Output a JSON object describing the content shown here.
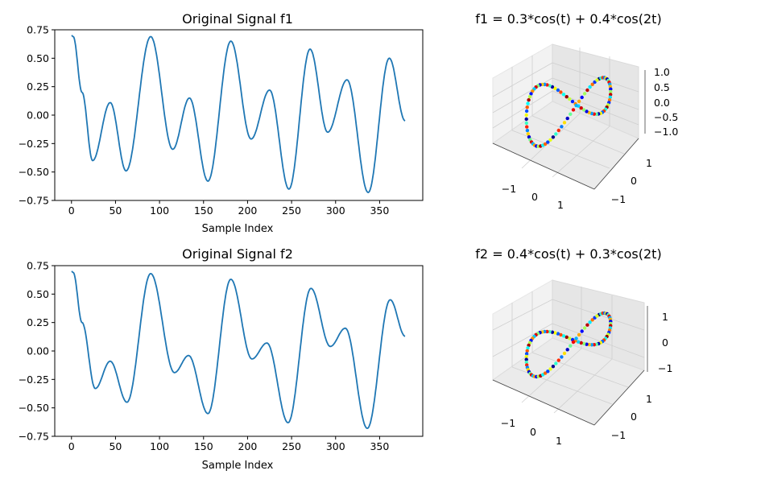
{
  "chart_data": [
    {
      "type": "line",
      "title": "Original Signal f1",
      "xlabel": "Sample Index",
      "ylabel": "",
      "xlim": [
        -19,
        399
      ],
      "ylim": [
        -0.75,
        0.75
      ],
      "xticks": [
        "0",
        "50",
        "100",
        "150",
        "200",
        "250",
        "300",
        "350"
      ],
      "yticks": [
        "0.75",
        "0.50",
        "0.25",
        "0.00",
        "−0.25",
        "−0.50",
        "−0.75"
      ],
      "series": [
        {
          "color": "#1f77b4",
          "x": [
            0,
            2,
            12,
            24,
            44,
            62,
            90,
            115,
            134,
            155,
            181,
            204,
            225,
            247,
            271,
            291,
            313,
            337,
            361,
            379
          ],
          "y": [
            0.7,
            0.69,
            0.2,
            -0.4,
            0.11,
            -0.49,
            0.69,
            -0.3,
            0.15,
            -0.58,
            0.65,
            -0.21,
            0.22,
            -0.65,
            0.58,
            -0.15,
            0.31,
            -0.68,
            0.5,
            -0.05
          ]
        }
      ]
    },
    {
      "type": "scatter3d",
      "title": "f1 = 0.3*cos(t) + 0.4*cos(2t)",
      "xticks": [
        "−1",
        "0",
        "1"
      ],
      "yticks": [
        "−1",
        "0",
        "1"
      ],
      "zticks": [
        "1.0",
        "0.5",
        "0.0",
        "−0.5",
        "−1.0"
      ],
      "colormap": "jet"
    },
    {
      "type": "line",
      "title": "Original Signal f2",
      "xlabel": "Sample Index",
      "ylabel": "",
      "xlim": [
        -19,
        399
      ],
      "ylim": [
        -0.75,
        0.75
      ],
      "xticks": [
        "0",
        "50",
        "100",
        "150",
        "200",
        "250",
        "300",
        "350"
      ],
      "yticks": [
        "0.75",
        "0.50",
        "0.25",
        "0.00",
        "−0.25",
        "−0.50",
        "−0.75"
      ],
      "series": [
        {
          "color": "#1f77b4",
          "x": [
            0,
            2,
            12,
            27,
            44,
            63,
            90,
            117,
            133,
            155,
            181,
            205,
            222,
            246,
            272,
            294,
            311,
            336,
            362,
            379
          ],
          "y": [
            0.7,
            0.69,
            0.25,
            -0.33,
            -0.09,
            -0.45,
            0.68,
            -0.19,
            -0.04,
            -0.55,
            0.63,
            -0.07,
            0.07,
            -0.63,
            0.55,
            0.04,
            0.2,
            -0.68,
            0.45,
            0.13
          ]
        }
      ]
    },
    {
      "type": "scatter3d",
      "title": "f2 = 0.4*cos(t) + 0.3*cos(2t)",
      "xticks": [
        "−1",
        "0",
        "1"
      ],
      "yticks": [
        "−1",
        "0",
        "1"
      ],
      "zticks": [
        "1",
        "0",
        "−1"
      ],
      "colormap": "jet"
    }
  ]
}
